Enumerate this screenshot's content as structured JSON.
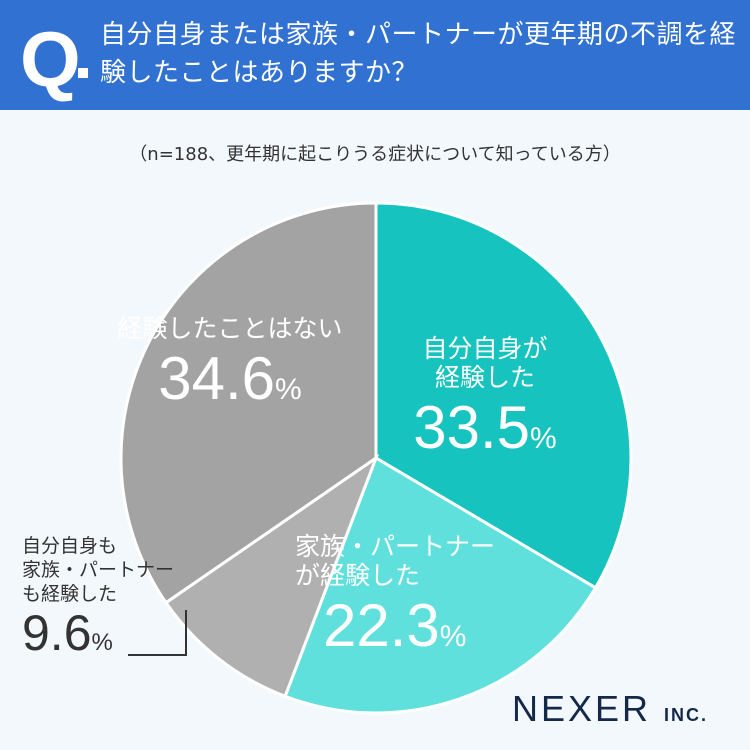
{
  "header": {
    "q_mark": "Q",
    "title": "自分自身または家族・パートナーが更年期の不調を経験したことはありますか？"
  },
  "note": "（n=188、更年期に起こりうる症状について知っている方）",
  "chart_data": {
    "type": "pie",
    "start": "top, clockwise",
    "slices": [
      {
        "label": "自分自身が経験した",
        "value": 33.5,
        "color": "#17c3bf"
      },
      {
        "label": "家族・パートナーが経験した",
        "value": 22.3,
        "color": "#5fe0dc"
      },
      {
        "label": "自分自身も家族・パートナーも経験した",
        "value": 9.6,
        "color": "#b1b0b1"
      },
      {
        "label": "経験したことはない",
        "value": 34.6,
        "color": "#a3a3a3"
      }
    ],
    "unit": "%"
  },
  "labels": {
    "s0": {
      "l1": "自分自身が",
      "l2": "経験した",
      "v": "33.5",
      "u": "%"
    },
    "s1": {
      "l1": "家族・パートナー",
      "l2": "が経験した",
      "v": "22.3",
      "u": "%"
    },
    "s2": {
      "l1": "自分自身も",
      "l2": "家族・パートナー",
      "l3": "も経験した",
      "v": "9.6",
      "u": "%"
    },
    "s3": {
      "l1": "経験したことはない",
      "v": "34.6",
      "u": "%"
    }
  },
  "logo": {
    "main": "NEXER",
    "sub": "INC."
  }
}
